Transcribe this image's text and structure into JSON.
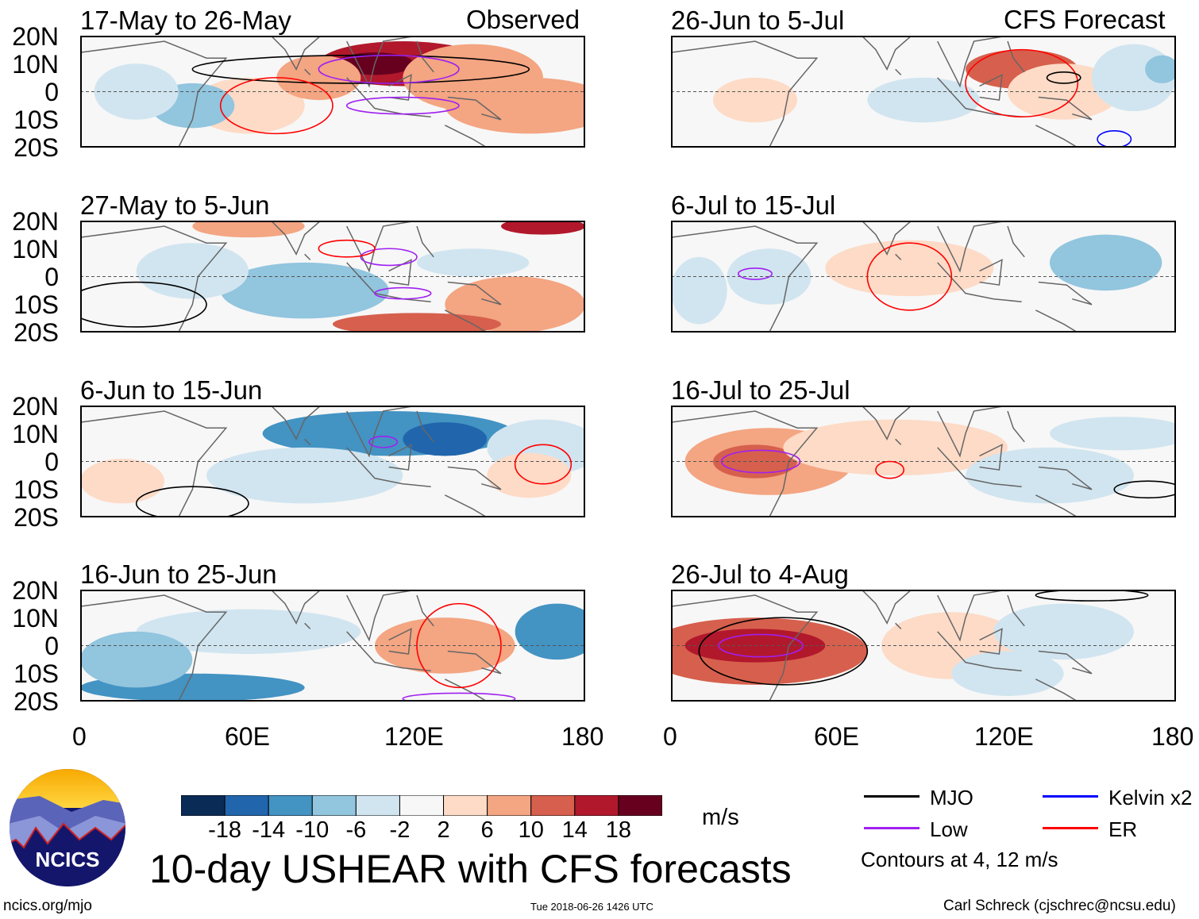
{
  "title": "10-day USHEAR with CFS forecasts",
  "units": "m/s",
  "labels": {
    "observed": "Observed",
    "forecast": "CFS Forecast"
  },
  "footer": {
    "left": "ncics.org/mjo",
    "center": "Tue 2018-06-26 1426 UTC",
    "right": "Carl Schreck (cjschrec@ncsu.edu)"
  },
  "logo_text": "NCICS",
  "legend": {
    "items": [
      {
        "label": "MJO",
        "color": "#000000"
      },
      {
        "label": "Kelvin x2",
        "color": "#0000ff"
      },
      {
        "label": "Low",
        "color": "#a020f0"
      },
      {
        "label": "ER",
        "color": "#ff0000"
      }
    ],
    "note": "Contours at 4, 12 m/s"
  },
  "colorbar": {
    "ticks": [
      "-18",
      "-14",
      "-10",
      "-6",
      "-2",
      "2",
      "6",
      "10",
      "14",
      "18"
    ],
    "colors": [
      "#0b2b57",
      "#2166ac",
      "#4393c3",
      "#92c5de",
      "#d1e5f0",
      "#f7f7f7",
      "#fddbc7",
      "#f4a582",
      "#d6604d",
      "#b2182b",
      "#67001f"
    ]
  },
  "chart_data": {
    "type": "heatmap",
    "xlim": [
      0,
      180
    ],
    "ylim": [
      -20,
      20
    ],
    "xticks": [
      "0",
      "60E",
      "120E",
      "180"
    ],
    "yticks": [
      "20N",
      "10N",
      "0",
      "10S",
      "20S"
    ],
    "panels": [
      {
        "title": "17-May to 26-May",
        "col": 0,
        "row": 0,
        "blobs": [
          [
            115,
            10,
            30,
            8,
            16
          ],
          [
            105,
            10,
            14,
            4,
            22
          ],
          [
            140,
            5,
            25,
            12,
            8
          ],
          [
            160,
            -5,
            30,
            10,
            6
          ],
          [
            60,
            -5,
            20,
            10,
            4
          ],
          [
            40,
            -5,
            15,
            8,
            -6
          ],
          [
            20,
            0,
            15,
            10,
            -3
          ],
          [
            85,
            5,
            15,
            8,
            6
          ]
        ],
        "contours": [
          [
            "#000",
            100,
            8,
            60,
            5
          ],
          [
            "#a020f0",
            110,
            8,
            25,
            5
          ],
          [
            "#a020f0",
            115,
            -5,
            20,
            3
          ],
          [
            "#ff0000",
            70,
            -5,
            20,
            10
          ]
        ]
      },
      {
        "title": "26-Jun to 5-Jul",
        "col": 1,
        "row": 0,
        "blobs": [
          [
            125,
            8,
            20,
            7,
            10
          ],
          [
            140,
            0,
            20,
            10,
            4
          ],
          [
            30,
            -3,
            15,
            8,
            3
          ],
          [
            90,
            -3,
            20,
            8,
            -3
          ],
          [
            165,
            5,
            15,
            12,
            -4
          ],
          [
            175,
            8,
            6,
            5,
            -6
          ]
        ],
        "contours": [
          [
            "#ff0000",
            125,
            3,
            20,
            12
          ],
          [
            "#000",
            140,
            5,
            6,
            2
          ],
          [
            "#0000ff",
            158,
            -17,
            6,
            3
          ]
        ]
      },
      {
        "title": "27-May to 5-Jun",
        "col": 0,
        "row": 1,
        "blobs": [
          [
            80,
            -5,
            30,
            10,
            -8
          ],
          [
            40,
            2,
            20,
            10,
            -4
          ],
          [
            165,
            18,
            15,
            3,
            14
          ],
          [
            155,
            -10,
            25,
            10,
            8
          ],
          [
            120,
            -17,
            30,
            4,
            10
          ],
          [
            140,
            5,
            20,
            5,
            -4
          ],
          [
            60,
            18,
            20,
            4,
            6
          ]
        ],
        "contours": [
          [
            "#a020f0",
            110,
            7,
            10,
            3
          ],
          [
            "#a020f0",
            115,
            -6,
            10,
            2
          ],
          [
            "#ff0000",
            95,
            10,
            10,
            3
          ],
          [
            "#000",
            20,
            -10,
            25,
            8
          ]
        ]
      },
      {
        "title": "6-Jul to 15-Jul",
        "col": 1,
        "row": 1,
        "blobs": [
          [
            85,
            3,
            30,
            10,
            4
          ],
          [
            155,
            5,
            20,
            10,
            -6
          ],
          [
            10,
            -5,
            10,
            12,
            -4
          ],
          [
            35,
            0,
            15,
            10,
            -2
          ]
        ],
        "contours": [
          [
            "#ff0000",
            85,
            0,
            15,
            12
          ],
          [
            "#a020f0",
            30,
            1,
            6,
            2
          ]
        ]
      },
      {
        "title": "6-Jun to 15-Jun",
        "col": 0,
        "row": 2,
        "blobs": [
          [
            110,
            10,
            45,
            8,
            -10
          ],
          [
            130,
            8,
            15,
            6,
            -14
          ],
          [
            80,
            -5,
            35,
            10,
            -5
          ],
          [
            165,
            5,
            20,
            10,
            -4
          ],
          [
            160,
            -5,
            15,
            8,
            4
          ],
          [
            15,
            -7,
            15,
            8,
            4
          ]
        ],
        "contours": [
          [
            "#ff0000",
            165,
            -1,
            10,
            7
          ],
          [
            "#a020f0",
            108,
            7,
            5,
            2
          ],
          [
            "#000",
            40,
            -15,
            20,
            6
          ]
        ]
      },
      {
        "title": "16-Jul to 25-Jul",
        "col": 1,
        "row": 2,
        "blobs": [
          [
            35,
            0,
            30,
            12,
            8
          ],
          [
            30,
            0,
            15,
            6,
            10
          ],
          [
            80,
            5,
            40,
            10,
            4
          ],
          [
            135,
            -5,
            30,
            10,
            -4
          ],
          [
            160,
            10,
            25,
            6,
            -3
          ]
        ],
        "contours": [
          [
            "#a020f0",
            32,
            0,
            14,
            4
          ],
          [
            "#ff0000",
            78,
            -3,
            5,
            3
          ],
          [
            "#000",
            170,
            -10,
            12,
            3
          ]
        ]
      },
      {
        "title": "16-Jun to 25-Jun",
        "col": 0,
        "row": 3,
        "blobs": [
          [
            130,
            0,
            25,
            10,
            7
          ],
          [
            170,
            5,
            15,
            10,
            -10
          ],
          [
            40,
            -15,
            40,
            5,
            -12
          ],
          [
            60,
            5,
            40,
            8,
            -4
          ],
          [
            20,
            -5,
            20,
            10,
            -6
          ]
        ],
        "contours": [
          [
            "#ff0000",
            135,
            0,
            15,
            15
          ],
          [
            "#a020f0",
            135,
            -19,
            20,
            2
          ]
        ]
      },
      {
        "title": "26-Jul to 4-Aug",
        "col": 1,
        "row": 3,
        "blobs": [
          [
            30,
            -2,
            40,
            12,
            10
          ],
          [
            30,
            0,
            25,
            6,
            15
          ],
          [
            100,
            0,
            25,
            12,
            4
          ],
          [
            140,
            5,
            25,
            10,
            -4
          ],
          [
            120,
            -10,
            20,
            8,
            -3
          ]
        ],
        "contours": [
          [
            "#000",
            40,
            -2,
            30,
            12
          ],
          [
            "#a020f0",
            32,
            0,
            15,
            4
          ],
          [
            "#000",
            150,
            18,
            20,
            2
          ]
        ]
      }
    ]
  }
}
